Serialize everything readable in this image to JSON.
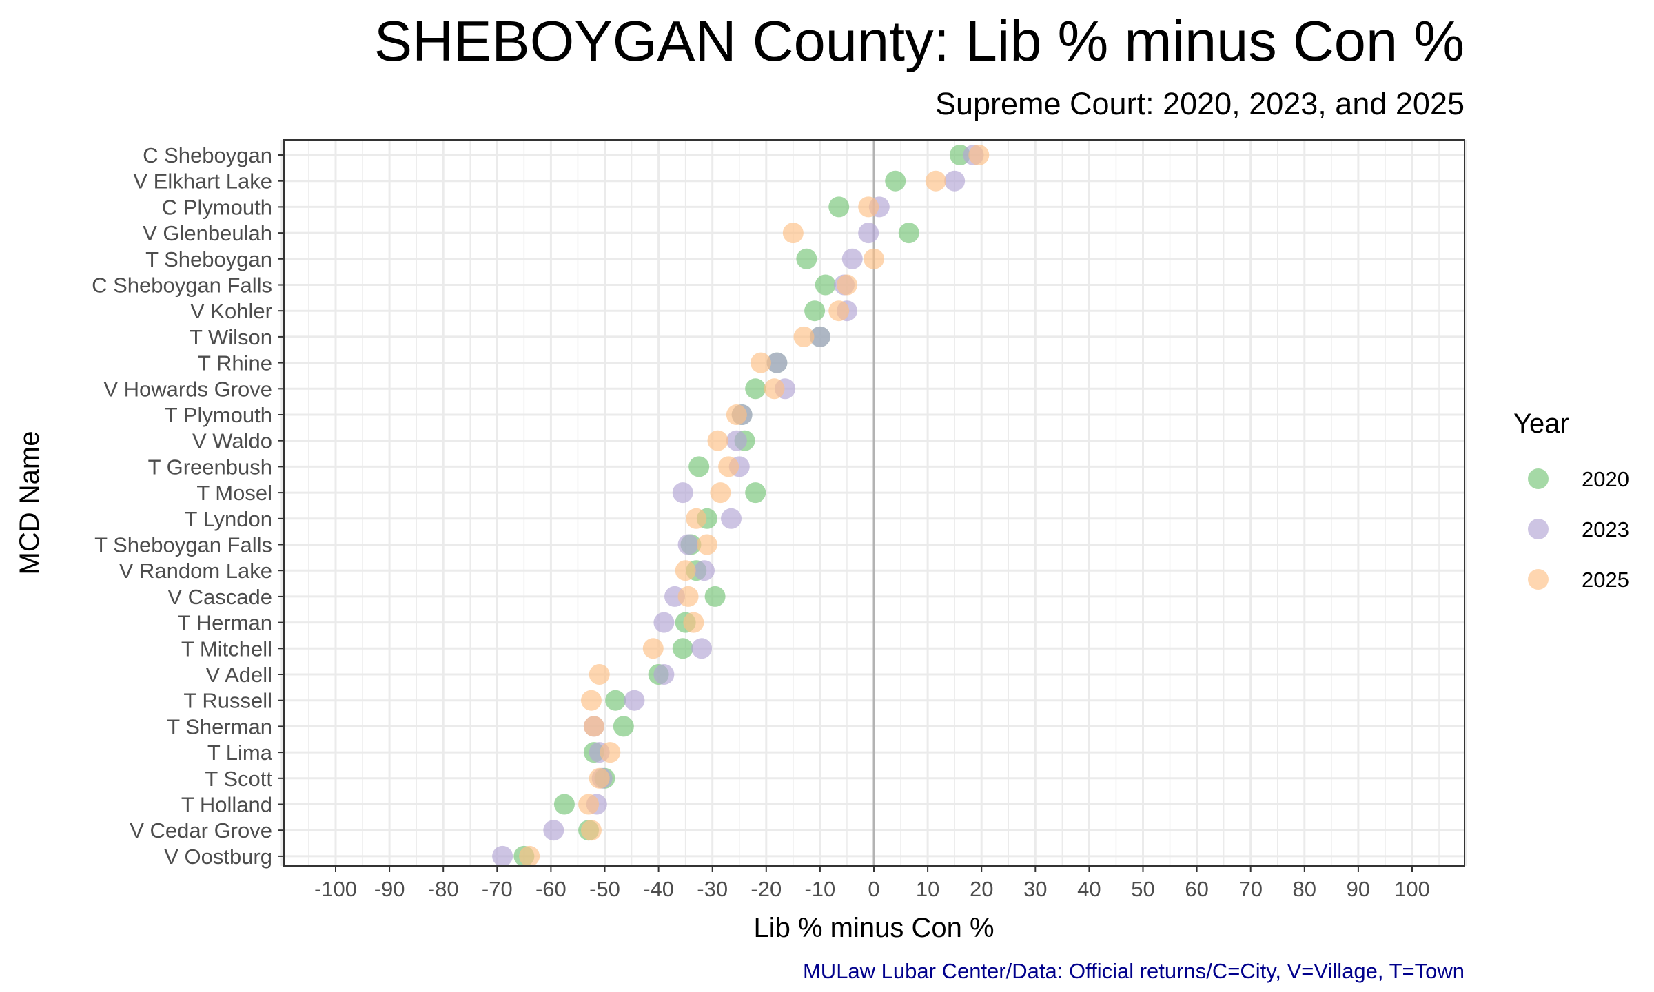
{
  "chart_data": {
    "type": "scatter",
    "title": "SHEBOYGAN County: Lib % minus Con %",
    "subtitle": "Supreme Court: 2020, 2023, and 2025",
    "xlabel": "Lib % minus Con %",
    "ylabel": "MCD Name",
    "caption": "MULaw Lubar Center/Data: Official returns/C=City, V=Village, T=Town",
    "xlim": [
      -110,
      110
    ],
    "xticks": [
      -100,
      -90,
      -80,
      -70,
      -60,
      -50,
      -40,
      -30,
      -20,
      -10,
      0,
      10,
      20,
      30,
      40,
      50,
      60,
      70,
      80,
      90,
      100
    ],
    "grid": true,
    "reference_line_x": 0,
    "legend": {
      "title": "Year",
      "placement": "right"
    },
    "categories": [
      "C Sheboygan",
      "V Elkhart Lake",
      "C Plymouth",
      "V Glenbeulah",
      "T Sheboygan",
      "C Sheboygan Falls",
      "V Kohler",
      "T Wilson",
      "T Rhine",
      "V Howards Grove",
      "T Plymouth",
      "V Waldo",
      "T Greenbush",
      "T Mosel",
      "T Lyndon",
      "T Sheboygan Falls",
      "V Random Lake",
      "V Cascade",
      "T Herman",
      "T Mitchell",
      "V Adell",
      "T Russell",
      "T Sherman",
      "T Lima",
      "T Scott",
      "T Holland",
      "V Cedar Grove",
      "V Oostburg"
    ],
    "series": [
      {
        "name": "2020",
        "color": "#74c476",
        "values": [
          16,
          4,
          -6.5,
          6.5,
          -12.5,
          -9,
          -11,
          -10,
          -18,
          -22,
          -24.5,
          -24,
          -32.5,
          -22,
          -31,
          -34,
          -33,
          -29.5,
          -35,
          -35.5,
          -40,
          -48,
          -46.5,
          -52,
          -50,
          -57.5,
          -53,
          -65
        ]
      },
      {
        "name": "2023",
        "color": "#b2a4d4",
        "values": [
          18.5,
          15,
          1,
          -1,
          -4,
          -5.5,
          -5,
          -10,
          -18,
          -16.5,
          -24.5,
          -25.5,
          -25,
          -35.5,
          -26.5,
          -34.5,
          -31.5,
          -37,
          -39,
          -32,
          -39,
          -44.5,
          -52,
          -51,
          -50.5,
          -51.5,
          -59.5,
          -69
        ]
      },
      {
        "name": "2025",
        "color": "#fdc086",
        "values": [
          19.5,
          11.5,
          -1,
          -15,
          0,
          -5,
          -6.5,
          -13,
          -21,
          -18.5,
          -25.5,
          -29,
          -27,
          -28.5,
          -33,
          -31,
          -35,
          -34.5,
          -33.5,
          -41,
          -51,
          -52.5,
          -52,
          -49,
          -51,
          -53,
          -52.5,
          -64
        ]
      }
    ]
  }
}
